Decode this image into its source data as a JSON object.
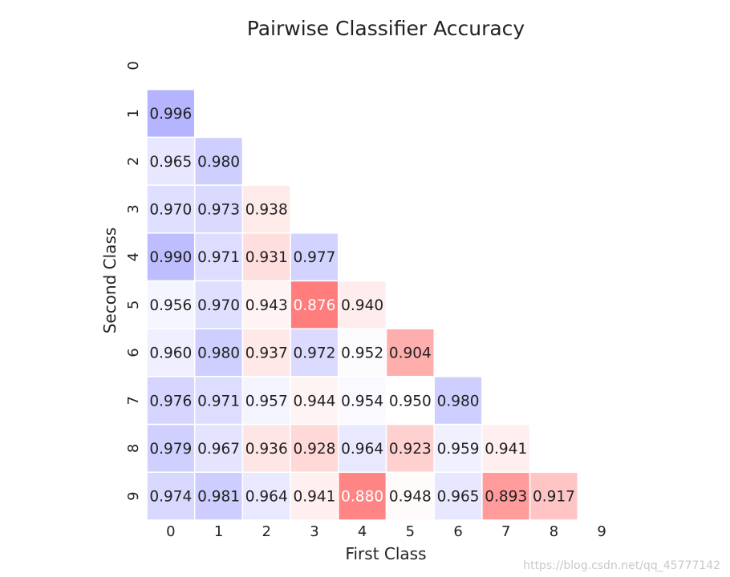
{
  "chart_data": {
    "type": "heatmap",
    "title": "Pairwise Classifier Accuracy",
    "xlabel": "First Class",
    "ylabel": "Second Class",
    "x_ticks": [
      "0",
      "1",
      "2",
      "3",
      "4",
      "5",
      "6",
      "7",
      "8",
      "9"
    ],
    "y_ticks": [
      "0",
      "1",
      "2",
      "3",
      "4",
      "5",
      "6",
      "7",
      "8",
      "9"
    ],
    "colormap": "bwr_r",
    "color_low": "#ff0000",
    "color_mid": "#ffffff",
    "color_high": "#0000ff",
    "grid": false,
    "cells": [
      {
        "x": 0,
        "y": 1,
        "value": 0.996
      },
      {
        "x": 0,
        "y": 2,
        "value": 0.965
      },
      {
        "x": 1,
        "y": 2,
        "value": 0.98
      },
      {
        "x": 0,
        "y": 3,
        "value": 0.97
      },
      {
        "x": 1,
        "y": 3,
        "value": 0.973
      },
      {
        "x": 2,
        "y": 3,
        "value": 0.938
      },
      {
        "x": 0,
        "y": 4,
        "value": 0.99
      },
      {
        "x": 1,
        "y": 4,
        "value": 0.971
      },
      {
        "x": 2,
        "y": 4,
        "value": 0.931
      },
      {
        "x": 3,
        "y": 4,
        "value": 0.977
      },
      {
        "x": 0,
        "y": 5,
        "value": 0.956
      },
      {
        "x": 1,
        "y": 5,
        "value": 0.97
      },
      {
        "x": 2,
        "y": 5,
        "value": 0.943
      },
      {
        "x": 3,
        "y": 5,
        "value": 0.876
      },
      {
        "x": 4,
        "y": 5,
        "value": 0.94
      },
      {
        "x": 0,
        "y": 6,
        "value": 0.96
      },
      {
        "x": 1,
        "y": 6,
        "value": 0.98
      },
      {
        "x": 2,
        "y": 6,
        "value": 0.937
      },
      {
        "x": 3,
        "y": 6,
        "value": 0.972
      },
      {
        "x": 4,
        "y": 6,
        "value": 0.952
      },
      {
        "x": 5,
        "y": 6,
        "value": 0.904
      },
      {
        "x": 0,
        "y": 7,
        "value": 0.976
      },
      {
        "x": 1,
        "y": 7,
        "value": 0.971
      },
      {
        "x": 2,
        "y": 7,
        "value": 0.957
      },
      {
        "x": 3,
        "y": 7,
        "value": 0.944
      },
      {
        "x": 4,
        "y": 7,
        "value": 0.954
      },
      {
        "x": 5,
        "y": 7,
        "value": 0.95
      },
      {
        "x": 6,
        "y": 7,
        "value": 0.98
      },
      {
        "x": 0,
        "y": 8,
        "value": 0.979
      },
      {
        "x": 1,
        "y": 8,
        "value": 0.967
      },
      {
        "x": 2,
        "y": 8,
        "value": 0.936
      },
      {
        "x": 3,
        "y": 8,
        "value": 0.928
      },
      {
        "x": 4,
        "y": 8,
        "value": 0.964
      },
      {
        "x": 5,
        "y": 8,
        "value": 0.923
      },
      {
        "x": 6,
        "y": 8,
        "value": 0.959
      },
      {
        "x": 7,
        "y": 8,
        "value": 0.941
      },
      {
        "x": 0,
        "y": 9,
        "value": 0.974
      },
      {
        "x": 1,
        "y": 9,
        "value": 0.981
      },
      {
        "x": 2,
        "y": 9,
        "value": 0.964
      },
      {
        "x": 3,
        "y": 9,
        "value": 0.941
      },
      {
        "x": 4,
        "y": 9,
        "value": 0.88
      },
      {
        "x": 5,
        "y": 9,
        "value": 0.948
      },
      {
        "x": 6,
        "y": 9,
        "value": 0.965
      },
      {
        "x": 7,
        "y": 9,
        "value": 0.893
      },
      {
        "x": 8,
        "y": 9,
        "value": 0.917
      }
    ]
  },
  "watermark": "https://blog.csdn.net/qq_45777142"
}
